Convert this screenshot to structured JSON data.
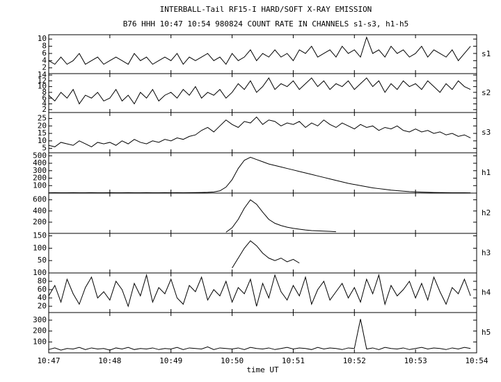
{
  "chart_data": [
    {
      "type": "line",
      "title": "INTERBALL-Tail RF15-I HARD/SOFT X-RAY EMISSION",
      "subtitle": "B76 HHH 10:47 10:54 980824  COUNT RATE IN CHANNELS s1-s3, h1-h5",
      "label": "s1",
      "color": "#000000",
      "x": [
        647,
        647.1,
        647.2,
        647.3,
        647.4,
        647.5,
        647.6,
        647.7,
        647.8,
        647.9,
        648,
        648.1,
        648.2,
        648.3,
        648.4,
        648.5,
        648.6,
        648.7,
        648.8,
        648.9,
        649,
        649.1,
        649.2,
        649.3,
        649.4,
        649.5,
        649.6,
        649.7,
        649.8,
        649.9,
        650,
        650.1,
        650.2,
        650.3,
        650.4,
        650.5,
        650.6,
        650.7,
        650.8,
        650.9,
        651,
        651.1,
        651.2,
        651.3,
        651.4,
        651.5,
        651.6,
        651.7,
        651.8,
        651.9,
        652,
        652.1,
        652.2,
        652.3,
        652.4,
        652.5,
        652.6,
        652.7,
        652.8,
        652.9,
        653,
        653.1,
        653.2,
        653.3,
        653.4,
        653.5,
        653.6,
        653.7,
        653.8,
        653.9
      ],
      "values": [
        4,
        3,
        5,
        3,
        4,
        6,
        3,
        4,
        5,
        3,
        4,
        5,
        4,
        3,
        6,
        4,
        5,
        3,
        4,
        5,
        4,
        6,
        3,
        5,
        4,
        5,
        6,
        4,
        5,
        3,
        6,
        4,
        5,
        7,
        4,
        6,
        5,
        7,
        5,
        6,
        4,
        7,
        6,
        8,
        5,
        6,
        7,
        5,
        8,
        6,
        7,
        5,
        10.5,
        6,
        7,
        5,
        8,
        6,
        7,
        5,
        6,
        8,
        5,
        7,
        6,
        5,
        7,
        4,
        6,
        8
      ],
      "xlim": [
        647,
        654
      ],
      "ylim": [
        0.4,
        11.2
      ],
      "yticks": [
        2,
        4,
        6,
        8,
        10
      ]
    },
    {
      "type": "line",
      "label": "s2",
      "color": "#000000",
      "x": [
        647,
        647.1,
        647.2,
        647.3,
        647.4,
        647.5,
        647.6,
        647.7,
        647.8,
        647.9,
        648,
        648.1,
        648.2,
        648.3,
        648.4,
        648.5,
        648.6,
        648.7,
        648.8,
        648.9,
        649,
        649.1,
        649.2,
        649.3,
        649.4,
        649.5,
        649.6,
        649.7,
        649.8,
        649.9,
        650,
        650.1,
        650.2,
        650.3,
        650.4,
        650.5,
        650.6,
        650.7,
        650.8,
        650.9,
        651,
        651.1,
        651.2,
        651.3,
        651.4,
        651.5,
        651.6,
        651.7,
        651.8,
        651.9,
        652,
        652.1,
        652.2,
        652.3,
        652.4,
        652.5,
        652.6,
        652.7,
        652.8,
        652.9,
        653,
        653.1,
        653.2,
        653.3,
        653.4,
        653.5,
        653.6,
        653.7,
        653.8,
        653.9
      ],
      "values": [
        7,
        5,
        8,
        6,
        9,
        4,
        7,
        6,
        8,
        5,
        6,
        9,
        5,
        7,
        4,
        8,
        6,
        9,
        5,
        7,
        8,
        6,
        9,
        7,
        10,
        6,
        8,
        7,
        9,
        6,
        8,
        11,
        9,
        12,
        8,
        10,
        13,
        9,
        11,
        10,
        12,
        9,
        11,
        13,
        10,
        12,
        9,
        11,
        10,
        12,
        9,
        11,
        13,
        10,
        12,
        8,
        11,
        9,
        12,
        10,
        11,
        9,
        12,
        10,
        8,
        11,
        9,
        12,
        10,
        9
      ],
      "xlim": [
        647,
        654
      ],
      "ylim": [
        1,
        14.5
      ],
      "yticks": [
        2,
        4,
        6,
        8,
        10,
        12,
        14
      ]
    },
    {
      "type": "line",
      "label": "s3",
      "color": "#000000",
      "x": [
        647,
        647.1,
        647.2,
        647.3,
        647.4,
        647.5,
        647.6,
        647.7,
        647.8,
        647.9,
        648,
        648.1,
        648.2,
        648.3,
        648.4,
        648.5,
        648.6,
        648.7,
        648.8,
        648.9,
        649,
        649.1,
        649.2,
        649.3,
        649.4,
        649.5,
        649.6,
        649.7,
        649.8,
        649.9,
        650,
        650.1,
        650.2,
        650.3,
        650.4,
        650.5,
        650.6,
        650.7,
        650.8,
        650.9,
        651,
        651.1,
        651.2,
        651.3,
        651.4,
        651.5,
        651.6,
        651.7,
        651.8,
        651.9,
        652,
        652.1,
        652.2,
        652.3,
        652.4,
        652.5,
        652.6,
        652.7,
        652.8,
        652.9,
        653,
        653.1,
        653.2,
        653.3,
        653.4,
        653.5,
        653.6,
        653.7,
        653.8,
        653.9
      ],
      "values": [
        7,
        6,
        9,
        8,
        7,
        10,
        8,
        6,
        9,
        8,
        9,
        7,
        10,
        8,
        11,
        9,
        8,
        10,
        9,
        11,
        10,
        12,
        11,
        13,
        14,
        17,
        19,
        16,
        20,
        24,
        21,
        19,
        23,
        22,
        26,
        21,
        24,
        23,
        20,
        22,
        21,
        23,
        19,
        22,
        20,
        24,
        21,
        19,
        22,
        20,
        18,
        21,
        19,
        20,
        17,
        19,
        18,
        20,
        17,
        16,
        18,
        16,
        17,
        15,
        16,
        14,
        15,
        13,
        14,
        12
      ],
      "xlim": [
        647,
        654
      ],
      "ylim": [
        2,
        29
      ],
      "yticks": [
        5,
        10,
        15,
        20,
        25
      ]
    },
    {
      "type": "line",
      "label": "h1",
      "color": "#000000",
      "x": [
        647,
        647.1,
        647.2,
        647.3,
        647.4,
        647.5,
        647.6,
        647.7,
        647.8,
        647.9,
        648,
        648.1,
        648.2,
        648.3,
        648.4,
        648.5,
        648.6,
        648.7,
        648.8,
        648.9,
        649,
        649.1,
        649.2,
        649.3,
        649.4,
        649.5,
        649.6,
        649.7,
        649.8,
        649.9,
        650,
        650.1,
        650.2,
        650.3,
        650.4,
        650.5,
        650.6,
        650.7,
        650.8,
        650.9,
        651,
        651.1,
        651.2,
        651.3,
        651.4,
        651.5,
        651.6,
        651.7,
        651.8,
        651.9,
        652,
        652.1,
        652.2,
        652.3,
        652.4,
        652.5,
        652.6,
        652.7,
        652.8,
        652.9,
        653,
        653.1,
        653.2,
        653.3,
        653.4,
        653.5,
        653.6,
        653.7,
        653.8,
        653.9
      ],
      "values": [
        5,
        6,
        5,
        5,
        6,
        5,
        5,
        6,
        5,
        5,
        6,
        5,
        5,
        6,
        5,
        5,
        6,
        5,
        5,
        6,
        5,
        6,
        5,
        6,
        7,
        8,
        10,
        15,
        30,
        80,
        180,
        330,
        440,
        480,
        450,
        420,
        390,
        370,
        350,
        330,
        310,
        290,
        270,
        250,
        230,
        210,
        190,
        170,
        150,
        130,
        115,
        100,
        85,
        70,
        60,
        50,
        40,
        32,
        26,
        20,
        16,
        13,
        10,
        8,
        7,
        6,
        5,
        5,
        5,
        4
      ],
      "xlim": [
        647,
        654
      ],
      "ylim": [
        0,
        540
      ],
      "yticks": [
        100,
        200,
        300,
        400,
        500
      ]
    },
    {
      "type": "line",
      "label": "h2",
      "color": "#000000",
      "x": [
        649.9,
        650,
        650.1,
        650.2,
        650.3,
        650.4,
        650.5,
        650.6,
        650.7,
        650.8,
        650.9,
        651,
        651.1,
        651.2,
        651.3,
        651.4,
        651.5,
        651.6,
        651.7
      ],
      "values": [
        20,
        100,
        250,
        450,
        600,
        520,
        380,
        250,
        180,
        140,
        110,
        90,
        75,
        60,
        50,
        45,
        40,
        35,
        30
      ],
      "xlim": [
        647,
        654
      ],
      "ylim": [
        0,
        720
      ],
      "yticks": [
        200,
        400,
        600
      ]
    },
    {
      "type": "line",
      "label": "h3",
      "color": "#000000",
      "x": [
        650,
        650.1,
        650.2,
        650.3,
        650.4,
        650.5,
        650.6,
        650.7,
        650.8,
        650.9,
        651,
        651.1
      ],
      "values": [
        20,
        60,
        100,
        130,
        110,
        80,
        60,
        50,
        60,
        45,
        55,
        40
      ],
      "xlim": [
        647,
        654
      ],
      "ylim": [
        0,
        160
      ],
      "yticks": [
        50,
        100,
        150
      ]
    },
    {
      "type": "line",
      "label": "h4",
      "color": "#000000",
      "x": [
        647,
        647.1,
        647.2,
        647.3,
        647.4,
        647.5,
        647.6,
        647.7,
        647.8,
        647.9,
        648,
        648.1,
        648.2,
        648.3,
        648.4,
        648.5,
        648.6,
        648.7,
        648.8,
        648.9,
        649,
        649.1,
        649.2,
        649.3,
        649.4,
        649.5,
        649.6,
        649.7,
        649.8,
        649.9,
        650,
        650.1,
        650.2,
        650.3,
        650.4,
        650.5,
        650.6,
        650.7,
        650.8,
        650.9,
        651,
        651.1,
        651.2,
        651.3,
        651.4,
        651.5,
        651.6,
        651.7,
        651.8,
        651.9,
        652,
        652.1,
        652.2,
        652.3,
        652.4,
        652.5,
        652.6,
        652.7,
        652.8,
        652.9,
        653,
        653.1,
        653.2,
        653.3,
        653.4,
        653.5,
        653.6,
        653.7,
        653.8,
        653.9
      ],
      "values": [
        45,
        70,
        30,
        85,
        50,
        25,
        65,
        90,
        40,
        55,
        35,
        80,
        60,
        20,
        75,
        45,
        95,
        30,
        65,
        50,
        85,
        40,
        25,
        70,
        55,
        90,
        35,
        60,
        45,
        80,
        30,
        65,
        50,
        85,
        20,
        75,
        40,
        95,
        55,
        35,
        70,
        45,
        90,
        25,
        60,
        80,
        35,
        55,
        75,
        40,
        65,
        30,
        85,
        50,
        95,
        25,
        70,
        45,
        60,
        80,
        40,
        75,
        35,
        90,
        55,
        25,
        65,
        50,
        85,
        45
      ],
      "xlim": [
        647,
        654
      ],
      "ylim": [
        5,
        100
      ],
      "yticks": [
        20,
        40,
        60,
        80,
        100
      ]
    },
    {
      "type": "line",
      "label": "h5",
      "color": "#000000",
      "xlabel": "time UT",
      "x": [
        647,
        647.1,
        647.2,
        647.3,
        647.4,
        647.5,
        647.6,
        647.7,
        647.8,
        647.9,
        648,
        648.1,
        648.2,
        648.3,
        648.4,
        648.5,
        648.6,
        648.7,
        648.8,
        648.9,
        649,
        649.1,
        649.2,
        649.3,
        649.4,
        649.5,
        649.6,
        649.7,
        649.8,
        649.9,
        650,
        650.1,
        650.2,
        650.3,
        650.4,
        650.5,
        650.6,
        650.7,
        650.8,
        650.9,
        651,
        651.1,
        651.2,
        651.3,
        651.4,
        651.5,
        651.6,
        651.7,
        651.8,
        651.9,
        652,
        652.1,
        652.2,
        652.3,
        652.4,
        652.5,
        652.6,
        652.7,
        652.8,
        652.9,
        653,
        653.1,
        653.2,
        653.3,
        653.4,
        653.5,
        653.6,
        653.7,
        653.8,
        653.9
      ],
      "values": [
        30,
        45,
        25,
        40,
        35,
        50,
        30,
        45,
        35,
        40,
        25,
        45,
        35,
        50,
        30,
        40,
        35,
        45,
        30,
        40,
        35,
        50,
        30,
        45,
        40,
        35,
        55,
        30,
        45,
        40,
        35,
        45,
        30,
        50,
        40,
        35,
        45,
        30,
        40,
        50,
        35,
        45,
        40,
        30,
        50,
        35,
        45,
        40,
        30,
        45,
        40,
        310,
        35,
        45,
        30,
        50,
        40,
        35,
        45,
        30,
        40,
        50,
        35,
        45,
        40,
        30,
        45,
        35,
        50,
        40
      ],
      "xlim": [
        647,
        654
      ],
      "ylim": [
        0,
        370
      ],
      "yticks": [
        100,
        200,
        300
      ],
      "xticks": [
        {
          "value": 647,
          "label": "10:47"
        },
        {
          "value": 648,
          "label": "10:48"
        },
        {
          "value": 649,
          "label": "10:49"
        },
        {
          "value": 650,
          "label": "10:50"
        },
        {
          "value": 651,
          "label": "10:51"
        },
        {
          "value": 652,
          "label": "10:52"
        },
        {
          "value": 653,
          "label": "10:53"
        },
        {
          "value": 654,
          "label": "10:54"
        }
      ]
    }
  ]
}
